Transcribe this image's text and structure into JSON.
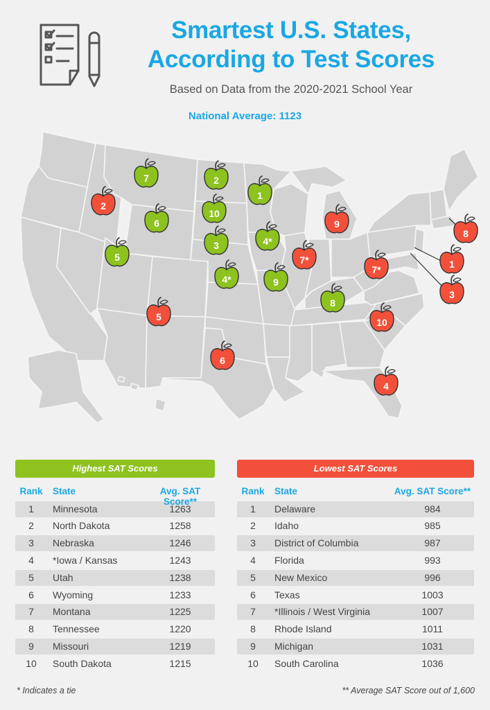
{
  "title_line1": "Smartest U.S. States,",
  "title_line2": "According to Test Scores",
  "subtitle": "Based on Data from the 2020-2021 School Year",
  "national_average": "National Average: 1123",
  "colors": {
    "accent": "#1aa7e3",
    "high": "#8dc21f",
    "low": "#f2503a",
    "map": "#d4d4d4"
  },
  "icons": {
    "logo": "checklist-pencil-icon",
    "marker": "apple-icon"
  },
  "markers": {
    "mt": "7",
    "id": "2",
    "nd": "2",
    "mn": "1",
    "wy": "6",
    "sd": "10",
    "ut": "5",
    "ne": "3",
    "ia": "4*",
    "ks": "4*",
    "mo": "9",
    "tn": "8",
    "nm": "5",
    "tx": "6",
    "mi": "9",
    "il": "7*",
    "wv": "7*",
    "sc": "10",
    "fl": "4",
    "de": "1",
    "dc": "3",
    "ri": "8"
  },
  "highest": {
    "title": "Highest SAT Scores",
    "headers": {
      "rank": "Rank",
      "state": "State",
      "score": "Avg. SAT Score**"
    },
    "rows": [
      {
        "rank": "1",
        "state": "Minnesota",
        "score": "1263"
      },
      {
        "rank": "2",
        "state": "North Dakota",
        "score": "1258"
      },
      {
        "rank": "3",
        "state": "Nebraska",
        "score": "1246"
      },
      {
        "rank": "4",
        "state": "*Iowa / Kansas",
        "score": "1243"
      },
      {
        "rank": "5",
        "state": "Utah",
        "score": "1238"
      },
      {
        "rank": "6",
        "state": "Wyoming",
        "score": "1233"
      },
      {
        "rank": "7",
        "state": "Montana",
        "score": "1225"
      },
      {
        "rank": "8",
        "state": "Tennessee",
        "score": "1220"
      },
      {
        "rank": "9",
        "state": "Missouri",
        "score": "1219"
      },
      {
        "rank": "10",
        "state": "South Dakota",
        "score": "1215"
      }
    ]
  },
  "lowest": {
    "title": "Lowest SAT Scores",
    "headers": {
      "rank": "Rank",
      "state": "State",
      "score": "Avg. SAT Score**"
    },
    "rows": [
      {
        "rank": "1",
        "state": "Delaware",
        "score": "984"
      },
      {
        "rank": "2",
        "state": "Idaho",
        "score": "985"
      },
      {
        "rank": "3",
        "state": "District of Columbia",
        "score": "987"
      },
      {
        "rank": "4",
        "state": "Florida",
        "score": "993"
      },
      {
        "rank": "5",
        "state": "New Mexico",
        "score": "996"
      },
      {
        "rank": "6",
        "state": "Texas",
        "score": "1003"
      },
      {
        "rank": "7",
        "state": "*Illinois / West Virginia",
        "score": "1007"
      },
      {
        "rank": "8",
        "state": "Rhode Island",
        "score": "1011"
      },
      {
        "rank": "9",
        "state": "Michigan",
        "score": "1031"
      },
      {
        "rank": "10",
        "state": "South Carolina",
        "score": "1036"
      }
    ]
  },
  "footnote_left": "* Indicates a tie",
  "footnote_right": "** Average SAT Score out of 1,600"
}
